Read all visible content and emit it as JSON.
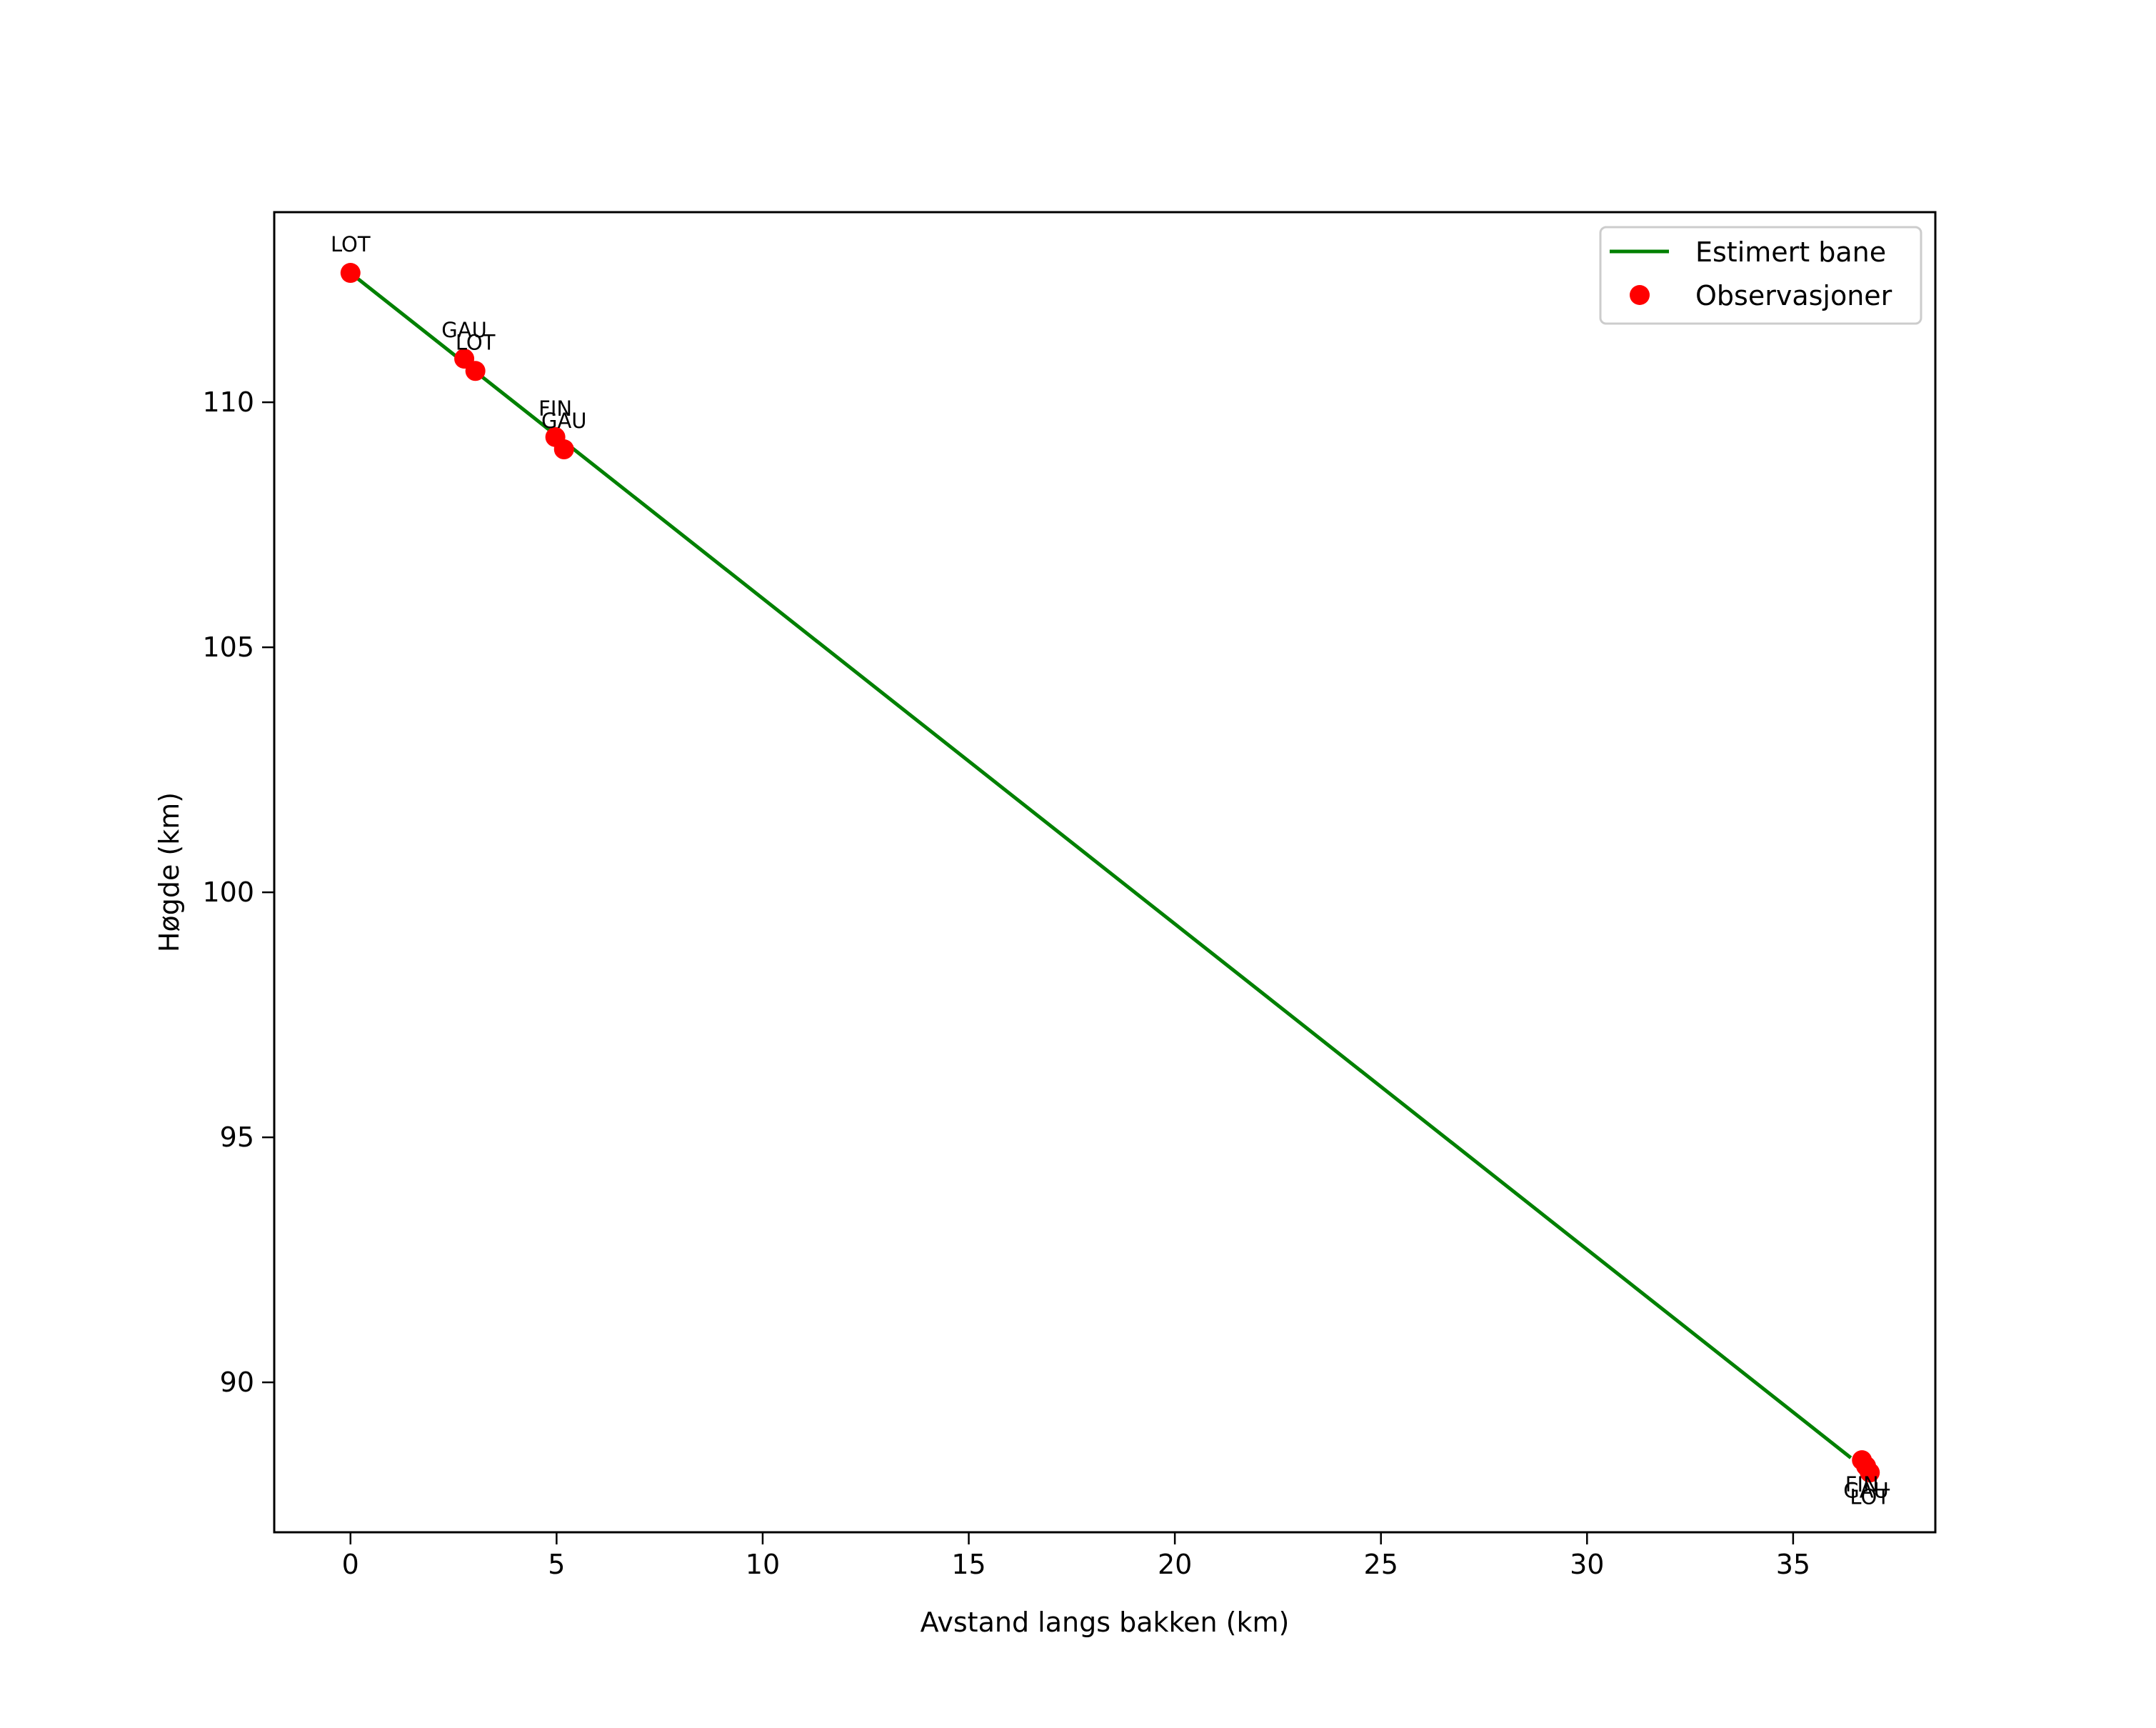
{
  "chart_data": {
    "type": "line",
    "title": "",
    "xlabel": "Avstand langs bakken (km)",
    "ylabel": "Høgde (km)",
    "xlim": [
      -1.85,
      38.45
    ],
    "ylim": [
      86.94,
      113.88
    ],
    "grid": false,
    "legend_position": "upper right",
    "x_ticks": [
      0,
      5,
      10,
      15,
      20,
      25,
      30,
      35
    ],
    "x_tick_labels": [
      "0",
      "5",
      "10",
      "15",
      "20",
      "25",
      "30",
      "35"
    ],
    "y_ticks": [
      90,
      95,
      100,
      105,
      110
    ],
    "y_tick_labels": [
      "90",
      "95",
      "100",
      "105",
      "110"
    ],
    "series": [
      {
        "name": "Estimert bane",
        "kind": "line",
        "color": "#008000",
        "x": [
          0.0,
          36.4
        ],
        "y": [
          112.64,
          88.46
        ]
      },
      {
        "name": "Observasjoner",
        "kind": "scatter",
        "color": "#ff0000",
        "points": [
          {
            "x": 0.0,
            "y": 112.64,
            "label": "LOT",
            "label_pos": "above"
          },
          {
            "x": 2.76,
            "y": 110.89,
            "label": "GAU",
            "label_pos": "above"
          },
          {
            "x": 3.03,
            "y": 110.64,
            "label": "LOT",
            "label_pos": "above"
          },
          {
            "x": 4.97,
            "y": 109.29,
            "label": "FIN",
            "label_pos": "above"
          },
          {
            "x": 5.18,
            "y": 109.04,
            "label": "GAU",
            "label_pos": "above"
          },
          {
            "x": 36.67,
            "y": 88.41,
            "label": "FIN",
            "label_pos": "below"
          },
          {
            "x": 36.77,
            "y": 88.29,
            "label": "GAU",
            "label_pos": "below"
          },
          {
            "x": 36.86,
            "y": 88.16,
            "label": "LOT",
            "label_pos": "below"
          }
        ]
      }
    ]
  },
  "legend": {
    "items": [
      {
        "label": "Estimert bane",
        "marker": "line",
        "color": "#008000"
      },
      {
        "label": "Observasjoner",
        "marker": "dot",
        "color": "#ff0000"
      }
    ]
  },
  "colors": {
    "line": "#008000",
    "points": "#ff0000",
    "axes": "#000000",
    "legend_border": "#cccccc"
  }
}
